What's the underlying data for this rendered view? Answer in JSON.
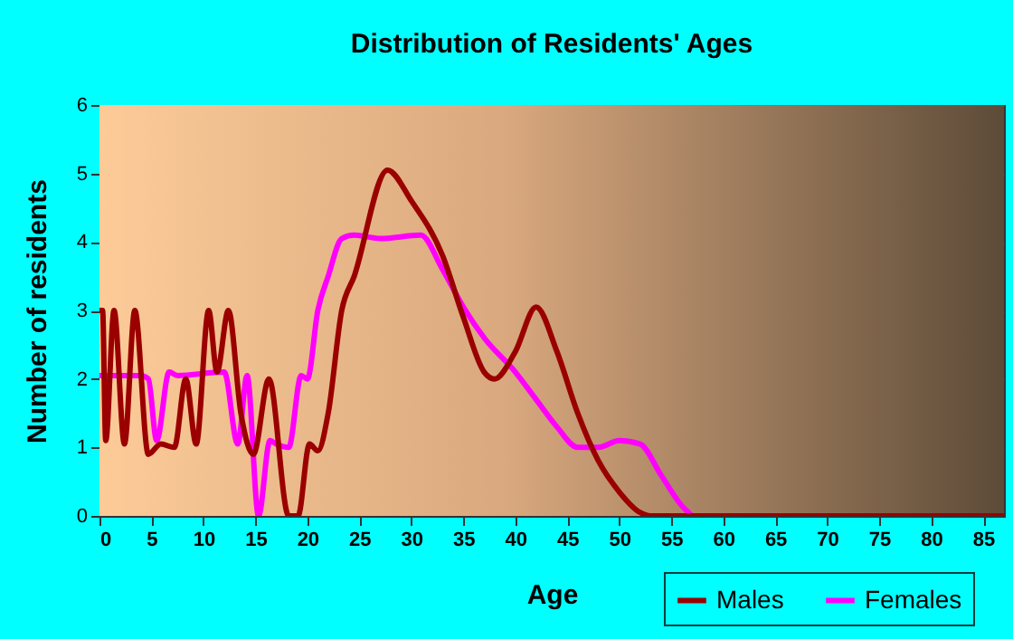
{
  "chart_data": {
    "type": "line",
    "title": "Distribution of Residents' Ages",
    "xlabel": "Age",
    "ylabel": "Number of residents",
    "xlim": [
      0,
      87
    ],
    "xticks": [
      0,
      5,
      10,
      15,
      20,
      25,
      30,
      35,
      40,
      45,
      50,
      55,
      60,
      65,
      70,
      75,
      80,
      85
    ],
    "ylim": [
      0,
      6
    ],
    "yticks": [
      0,
      1,
      2,
      3,
      4,
      5,
      6
    ],
    "grid": true,
    "legend": "bottom right",
    "line_style": "solid",
    "marker": "none",
    "series": [
      {
        "name": "Males",
        "color": "#9b0000",
        "x": [
          0,
          0.3,
          0.6,
          1.4,
          2.4,
          3.4,
          4.7,
          5.9,
          7.2,
          8.3,
          9.3,
          10.5,
          11.3,
          12.4,
          13.6,
          14.8,
          16.3,
          18.2,
          19.1,
          20.2,
          21,
          22,
          23.3,
          24.5,
          27.7,
          30,
          33,
          35,
          37,
          38,
          40,
          42,
          44,
          46,
          48,
          50,
          52,
          53,
          60,
          70,
          80,
          87
        ],
        "values": [
          3,
          3,
          1.1,
          3,
          1.05,
          3,
          0.9,
          1.05,
          1,
          2,
          1.05,
          3,
          2.1,
          3,
          1.5,
          0.9,
          2,
          0,
          0,
          1.05,
          0.95,
          1.5,
          3,
          3.5,
          5.05,
          4.6,
          3.8,
          2.9,
          2.1,
          2,
          2.4,
          3.05,
          2.4,
          1.5,
          0.8,
          0.35,
          0.05,
          0,
          0,
          0,
          0,
          0
        ]
      },
      {
        "name": "Females",
        "color": "#ff00ff",
        "x": [
          0,
          4,
          4.7,
          5.5,
          6.7,
          7.5,
          12,
          13.3,
          14.2,
          15.3,
          16.4,
          17,
          18.2,
          19.4,
          20,
          21,
          22,
          23.3,
          24.5,
          27,
          30.9,
          33,
          35,
          37,
          40,
          42,
          44,
          46,
          48,
          50,
          52,
          54,
          56,
          57
        ],
        "values": [
          2.05,
          2.05,
          2,
          1.1,
          2.1,
          2.05,
          2.1,
          1.05,
          2.05,
          0,
          1.1,
          1.05,
          1,
          2.05,
          2,
          3,
          3.5,
          4.05,
          4.1,
          4.05,
          4.1,
          3.6,
          3.05,
          2.6,
          2.1,
          1.7,
          1.3,
          1,
          1,
          1.1,
          1.05,
          0.6,
          0.15,
          0
        ]
      }
    ]
  }
}
